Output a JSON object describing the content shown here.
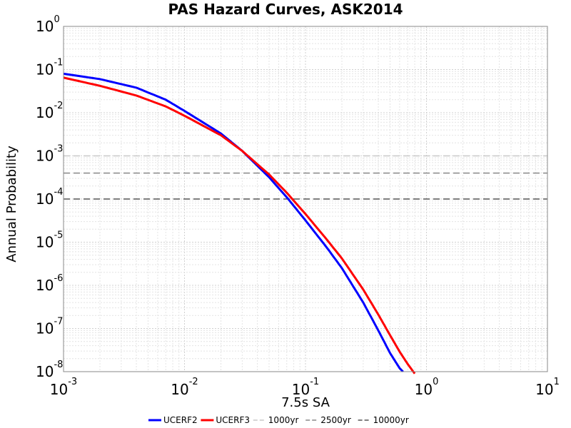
{
  "chart_data": {
    "type": "line",
    "title": "PAS Hazard Curves, ASK2014",
    "xlabel": "7.5s SA",
    "ylabel": "Annual Probability",
    "xscale": "log",
    "yscale": "log",
    "xlim": [
      0.001,
      10
    ],
    "ylim": [
      1e-08,
      1
    ],
    "grid": true,
    "legend_position": "bottom",
    "x_ticks": [
      {
        "base": "10",
        "exp": "-3"
      },
      {
        "base": "10",
        "exp": "-2"
      },
      {
        "base": "10",
        "exp": "-1"
      },
      {
        "base": "10",
        "exp": "0"
      },
      {
        "base": "10",
        "exp": "1"
      }
    ],
    "y_ticks": [
      {
        "base": "10",
        "exp": "0"
      },
      {
        "base": "10",
        "exp": "-1"
      },
      {
        "base": "10",
        "exp": "-2"
      },
      {
        "base": "10",
        "exp": "-3"
      },
      {
        "base": "10",
        "exp": "-4"
      },
      {
        "base": "10",
        "exp": "-5"
      },
      {
        "base": "10",
        "exp": "-6"
      },
      {
        "base": "10",
        "exp": "-7"
      },
      {
        "base": "10",
        "exp": "-8"
      }
    ],
    "series": [
      {
        "name": "UCERF2",
        "color": "#0000ff",
        "x": [
          0.001,
          0.002,
          0.004,
          0.007,
          0.01,
          0.02,
          0.03,
          0.05,
          0.07,
          0.1,
          0.15,
          0.2,
          0.3,
          0.4,
          0.5,
          0.6,
          0.64
        ],
        "y": [
          0.08,
          0.06,
          0.038,
          0.02,
          0.011,
          0.0033,
          0.0013,
          0.00032,
          0.00011,
          3.2e-05,
          7.5e-06,
          2.5e-06,
          4e-07,
          9e-08,
          2.7e-08,
          1.2e-08,
          1e-08
        ]
      },
      {
        "name": "UCERF3",
        "color": "#ff0000",
        "x": [
          0.001,
          0.002,
          0.004,
          0.007,
          0.01,
          0.02,
          0.03,
          0.05,
          0.07,
          0.1,
          0.15,
          0.2,
          0.3,
          0.4,
          0.5,
          0.6,
          0.7,
          0.8
        ],
        "y": [
          0.065,
          0.042,
          0.025,
          0.014,
          0.0085,
          0.003,
          0.0013,
          0.00037,
          0.00014,
          4.5e-05,
          1.15e-05,
          4.2e-06,
          8e-07,
          2.1e-07,
          7e-08,
          2.9e-08,
          1.5e-08,
          9e-09
        ]
      }
    ],
    "reference_lines": [
      {
        "name": "1000yr",
        "y": 0.001,
        "color": "#c8c8c8"
      },
      {
        "name": "2500yr",
        "y": 0.0004,
        "color": "#888888"
      },
      {
        "name": "10000yr",
        "y": 0.0001,
        "color": "#555555"
      }
    ]
  }
}
